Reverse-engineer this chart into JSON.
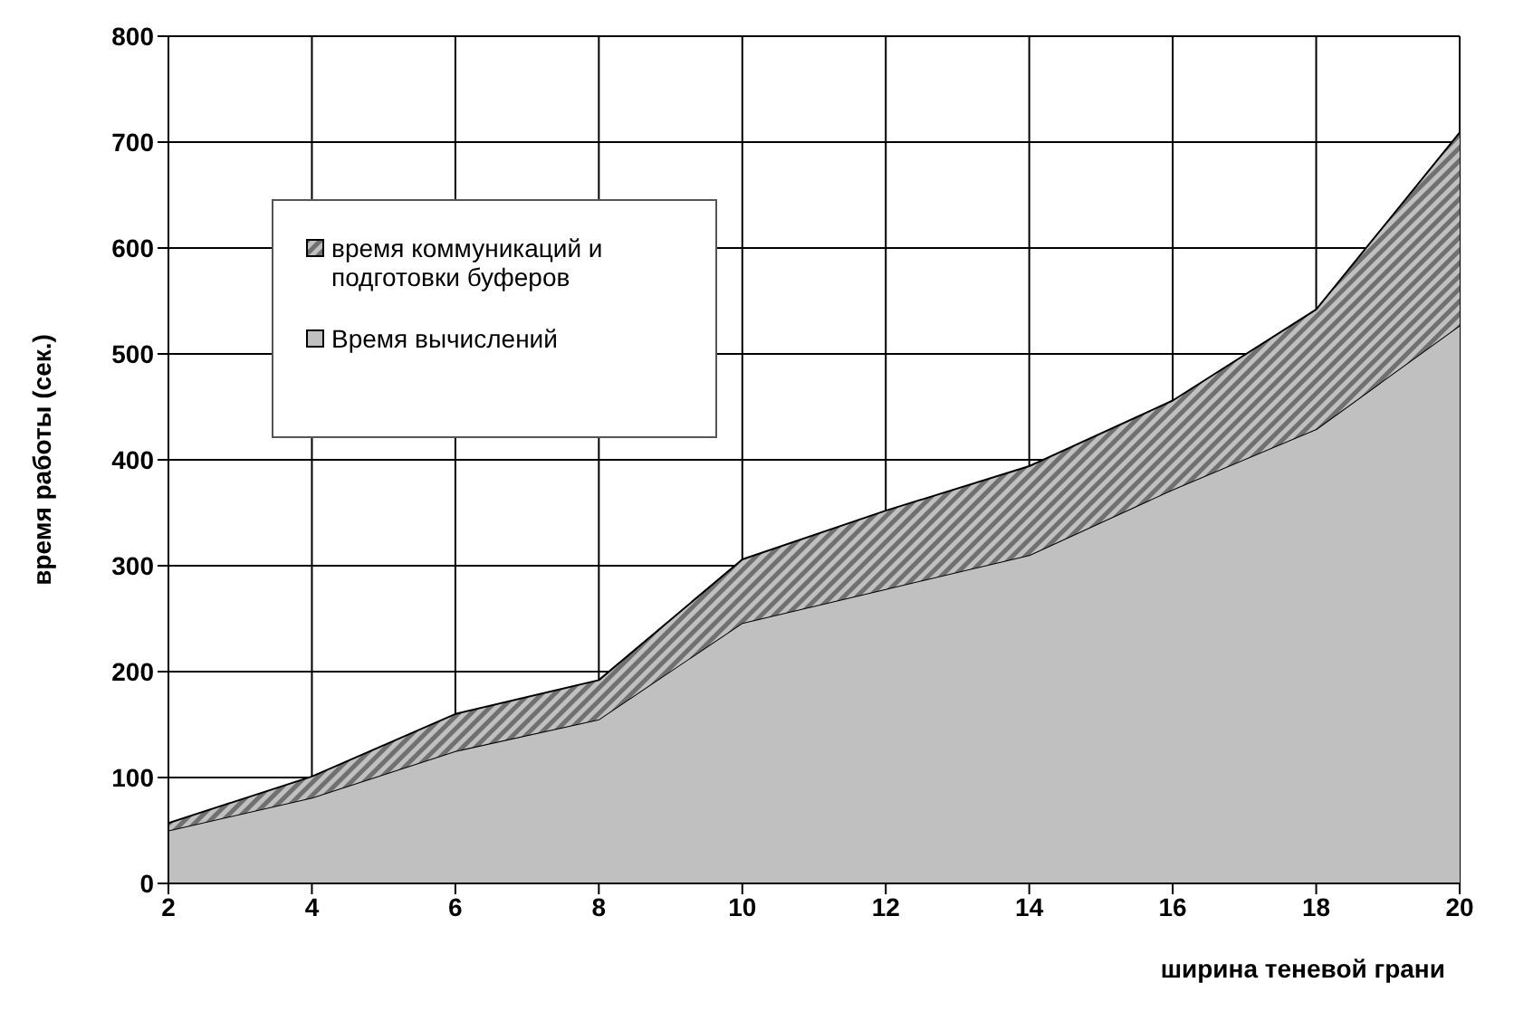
{
  "chart_data": {
    "type": "area",
    "stacked": true,
    "xlabel": "ширина теневой грани",
    "ylabel": "время работы (сек.)",
    "x": [
      2,
      4,
      6,
      8,
      10,
      12,
      14,
      16,
      18,
      20
    ],
    "series": [
      {
        "name": "Время вычислений",
        "color": "#c0c0c0",
        "values": [
          50,
          81,
          125,
          155,
          246,
          278,
          310,
          372,
          429,
          527
        ]
      },
      {
        "name": "время коммуникаций и подготовки буферов",
        "color": "#707070",
        "values": [
          7,
          20,
          35,
          37,
          60,
          74,
          84,
          84,
          113,
          182
        ]
      }
    ],
    "xlim": [
      2,
      20
    ],
    "xticks": [
      2,
      4,
      6,
      8,
      10,
      12,
      14,
      16,
      18,
      20
    ],
    "ylim": [
      0,
      800
    ],
    "yticks": [
      0,
      100,
      200,
      300,
      400,
      500,
      600,
      700,
      800
    ],
    "grid": true,
    "legend": "top left"
  }
}
